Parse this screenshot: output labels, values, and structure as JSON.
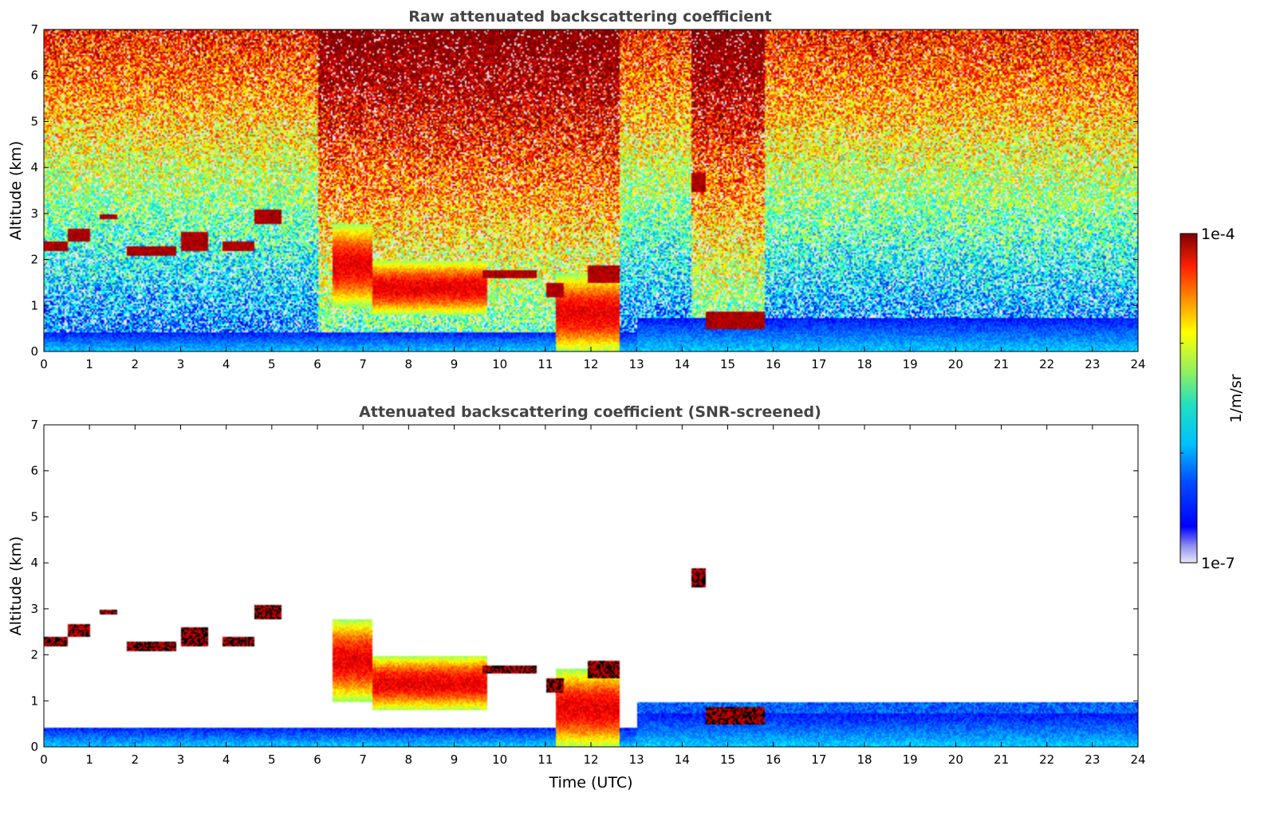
{
  "chart_data": [
    {
      "type": "heatmap",
      "title": "Raw attenuated backscattering coefficient",
      "xlabel": "",
      "ylabel": "Altitude (km)",
      "xlim": [
        0,
        24
      ],
      "ylim": [
        0,
        7
      ],
      "xticks": [
        "0",
        "1",
        "2",
        "3",
        "4",
        "5",
        "6",
        "7",
        "8",
        "9",
        "10",
        "11",
        "12",
        "13",
        "14",
        "15",
        "16",
        "17",
        "18",
        "19",
        "20",
        "21",
        "22",
        "23",
        "24"
      ],
      "yticks": [
        "0",
        "1",
        "2",
        "3",
        "4",
        "5",
        "6",
        "7"
      ],
      "screened": false,
      "noisy_periods_utc": [
        [
          6.0,
          9.3
        ],
        [
          9.3,
          12.6
        ],
        [
          14.2,
          15.8
        ]
      ],
      "cloud_layers": [
        {
          "t0": 0.0,
          "t1": 0.5,
          "base_km": 2.2,
          "top_km": 2.4
        },
        {
          "t0": 0.5,
          "t1": 1.0,
          "base_km": 2.4,
          "top_km": 2.7
        },
        {
          "t0": 1.2,
          "t1": 1.6,
          "base_km": 2.9,
          "top_km": 3.0
        },
        {
          "t0": 1.8,
          "t1": 2.9,
          "base_km": 2.1,
          "top_km": 2.3
        },
        {
          "t0": 3.0,
          "t1": 3.6,
          "base_km": 2.2,
          "top_km": 2.6
        },
        {
          "t0": 3.9,
          "t1": 4.6,
          "base_km": 2.2,
          "top_km": 2.4
        },
        {
          "t0": 4.6,
          "t1": 5.2,
          "base_km": 2.8,
          "top_km": 3.1
        },
        {
          "t0": 9.6,
          "t1": 10.8,
          "base_km": 1.6,
          "top_km": 1.8
        },
        {
          "t0": 11.0,
          "t1": 11.4,
          "base_km": 1.2,
          "top_km": 1.5
        },
        {
          "t0": 11.9,
          "t1": 12.6,
          "base_km": 1.5,
          "top_km": 1.9
        },
        {
          "t0": 14.2,
          "t1": 14.5,
          "base_km": 3.5,
          "top_km": 3.9
        },
        {
          "t0": 14.5,
          "t1": 15.8,
          "base_km": 0.5,
          "top_km": 0.9
        }
      ],
      "precip_regions": [
        {
          "t0": 6.3,
          "t1": 7.2,
          "base_km": 1.0,
          "top_km": 2.8
        },
        {
          "t0": 7.2,
          "t1": 9.7,
          "base_km": 0.8,
          "top_km": 2.0
        },
        {
          "t0": 11.2,
          "t1": 12.6,
          "base_km": 0.0,
          "top_km": 1.7
        }
      ]
    },
    {
      "type": "heatmap",
      "title": "Attenuated backscattering coefficient (SNR-screened)",
      "xlabel": "Time (UTC)",
      "ylabel": "Altitude (km)",
      "xlim": [
        0,
        24
      ],
      "ylim": [
        0,
        7
      ],
      "xticks": [
        "0",
        "1",
        "2",
        "3",
        "4",
        "5",
        "6",
        "7",
        "8",
        "9",
        "10",
        "11",
        "12",
        "13",
        "14",
        "15",
        "16",
        "17",
        "18",
        "19",
        "20",
        "21",
        "22",
        "23",
        "24"
      ],
      "yticks": [
        "0",
        "1",
        "2",
        "3",
        "4",
        "5",
        "6",
        "7"
      ],
      "screened": true
    }
  ],
  "colorbar": {
    "max_label": "1e-4",
    "min_label": "1e-7",
    "unit_label": "1/m/sr",
    "colormap": "jet",
    "min_value": 1e-07,
    "max_value": 0.0001
  }
}
